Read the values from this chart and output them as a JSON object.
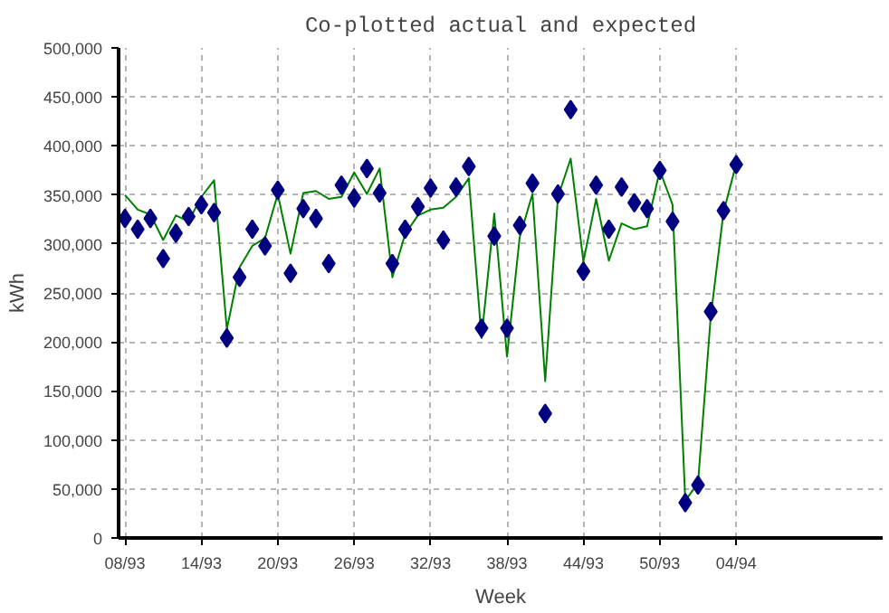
{
  "chart_data": {
    "type": "scatter",
    "title": "Co-plotted actual and expected",
    "xlabel": "Week",
    "ylabel": "kWh",
    "categories": [
      "08/93",
      null,
      null,
      null,
      null,
      null,
      "14/93",
      null,
      null,
      null,
      null,
      null,
      "20/93",
      null,
      null,
      null,
      null,
      null,
      "26/93",
      null,
      null,
      null,
      null,
      null,
      "32/93",
      null,
      null,
      null,
      null,
      null,
      "38/93",
      null,
      null,
      null,
      null,
      null,
      "44/93",
      null,
      null,
      null,
      null,
      null,
      "50/93",
      null,
      null,
      null,
      null,
      null,
      "04/94",
      null,
      null,
      null,
      null,
      null,
      null,
      null,
      null,
      null,
      null,
      null
    ],
    "series": [
      {
        "type": "line",
        "marker": "none",
        "color": "#008000",
        "values": [
          350000,
          335000,
          330000,
          304000,
          329000,
          323000,
          348000,
          365000,
          213000,
          276000,
          298000,
          306000,
          351000,
          290000,
          352000,
          354000,
          346000,
          348000,
          373000,
          351000,
          377000,
          266000,
          310000,
          329000,
          335000,
          337000,
          348000,
          367000,
          204000,
          331000,
          185000,
          307000,
          351000,
          160000,
          348000,
          387000,
          282000,
          346000,
          283000,
          321000,
          315000,
          318000,
          375000,
          340000,
          38000,
          56000,
          226000,
          332000,
          382000,
          null,
          null,
          null,
          null,
          null,
          null,
          null,
          null,
          null,
          null,
          null
        ]
      },
      {
        "marker": "diamond",
        "color": "#000080",
        "values": [
          326000,
          315000,
          326000,
          285000,
          311000,
          328000,
          340000,
          332000,
          204000,
          266000,
          315000,
          298000,
          355000,
          270000,
          336000,
          326000,
          280000,
          360000,
          347000,
          377000,
          352000,
          280000,
          315000,
          338000,
          357000,
          304000,
          358000,
          379000,
          214000,
          308000,
          214000,
          319000,
          362000,
          127000,
          351000,
          437000,
          272000,
          360000,
          315000,
          358000,
          342000,
          336000,
          375000,
          323000,
          36000,
          54000,
          231000,
          334000,
          381000,
          null,
          null,
          null,
          null,
          null,
          null,
          null,
          null,
          null,
          null,
          null
        ]
      }
    ],
    "ylim": [
      0,
      500000
    ],
    "yticks": [
      {
        "value": 0,
        "label": "0"
      },
      {
        "value": 50000,
        "label": "50,000"
      },
      {
        "value": 100000,
        "label": "100,000"
      },
      {
        "value": 150000,
        "label": "150,000"
      },
      {
        "value": 200000,
        "label": "200,000"
      },
      {
        "value": 250000,
        "label": "250,000"
      },
      {
        "value": 300000,
        "label": "300,000"
      },
      {
        "value": 350000,
        "label": "350,000"
      },
      {
        "value": 400000,
        "label": "400,000"
      },
      {
        "value": 450000,
        "label": "450,000"
      },
      {
        "value": 500000,
        "label": "500,000"
      }
    ],
    "grid": true
  }
}
